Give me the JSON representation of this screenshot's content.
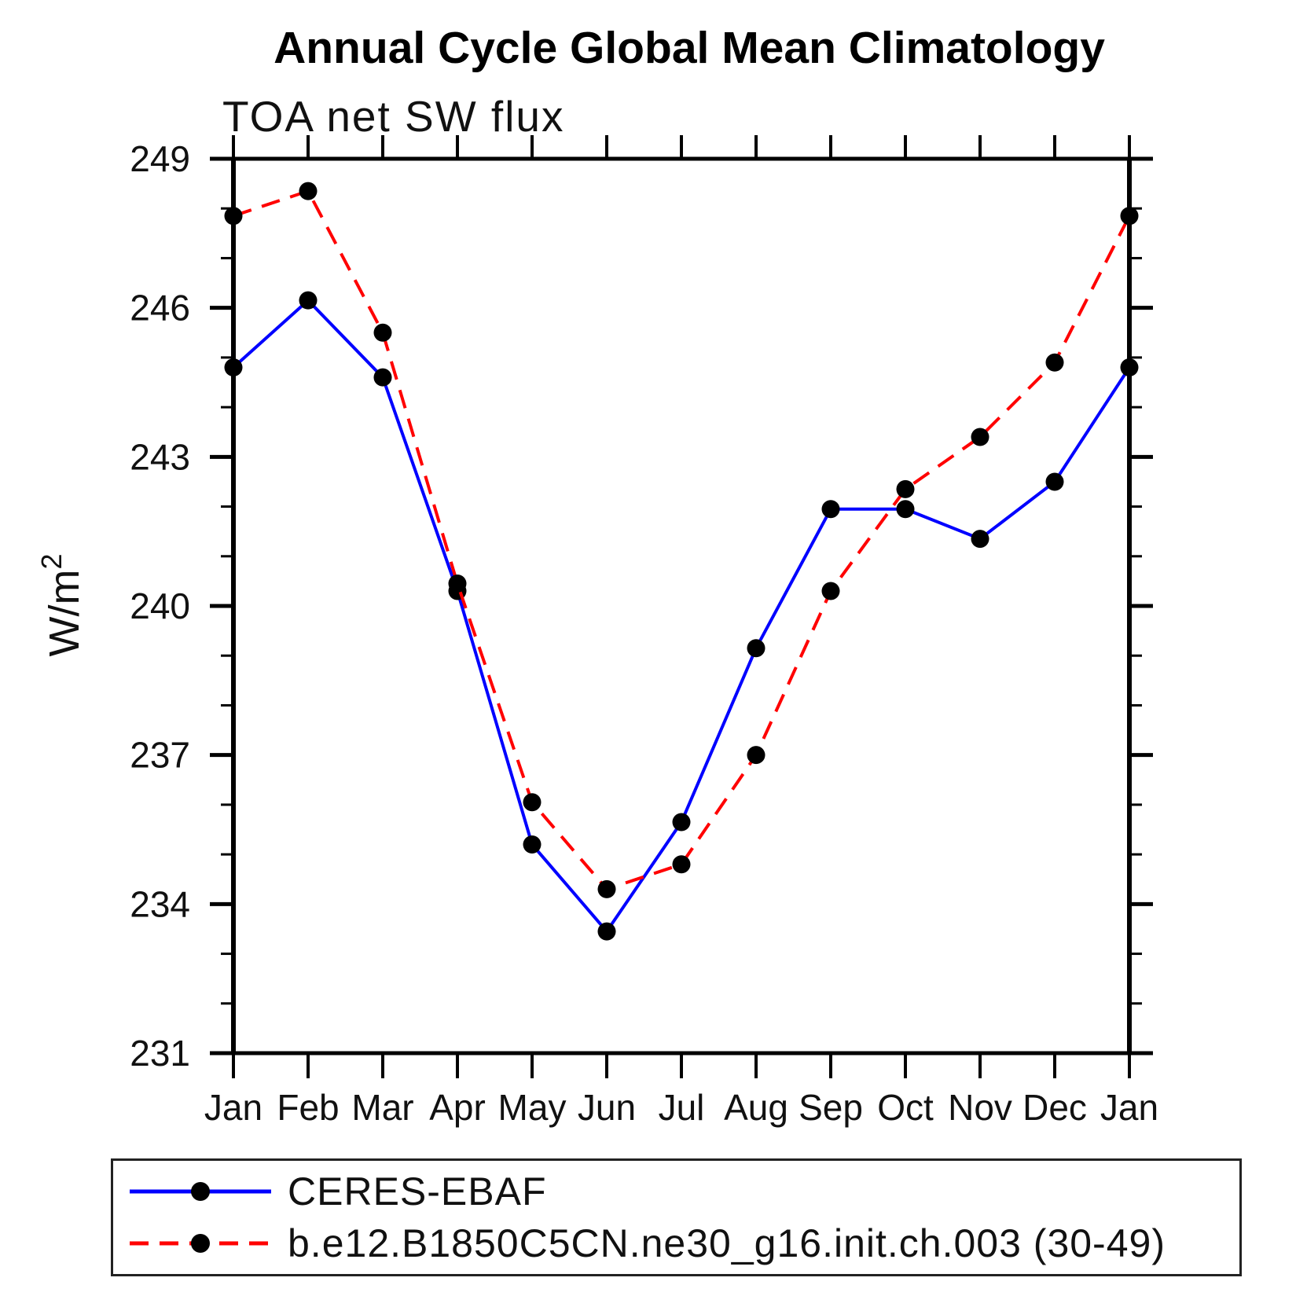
{
  "page": {
    "background": "#ffffff"
  },
  "chart_data": {
    "type": "line",
    "title": "Annual Cycle Global Mean Climatology",
    "subtitle": "TOA net SW flux",
    "xlabel": "",
    "ylabel": "W/m²",
    "categories": [
      "Jan",
      "Feb",
      "Mar",
      "Apr",
      "May",
      "Jun",
      "Jul",
      "Aug",
      "Sep",
      "Oct",
      "Nov",
      "Dec",
      "Jan"
    ],
    "ylim": [
      231,
      249
    ],
    "y_major_ticks": [
      231,
      234,
      237,
      240,
      243,
      246,
      249
    ],
    "y_minor_step": 1,
    "grid": false,
    "legend_position": "bottom-left-box",
    "axis_color": "#000000",
    "marker_color": "#000000",
    "marker": "filled-circle",
    "series": [
      {
        "name": "CERES-EBAF",
        "color": "#0000ff",
        "style": "solid",
        "values": [
          244.8,
          246.15,
          244.6,
          240.3,
          235.2,
          233.45,
          235.65,
          239.15,
          241.95,
          241.95,
          241.35,
          242.5,
          244.8
        ]
      },
      {
        "name": "b.e12.B1850C5CN.ne30_g16.init.ch.003 (30-49)",
        "color": "#ff0000",
        "style": "dashed",
        "values": [
          247.85,
          248.35,
          245.5,
          240.45,
          236.05,
          234.3,
          234.8,
          237.0,
          240.3,
          242.35,
          243.4,
          244.9,
          247.85
        ]
      }
    ]
  }
}
